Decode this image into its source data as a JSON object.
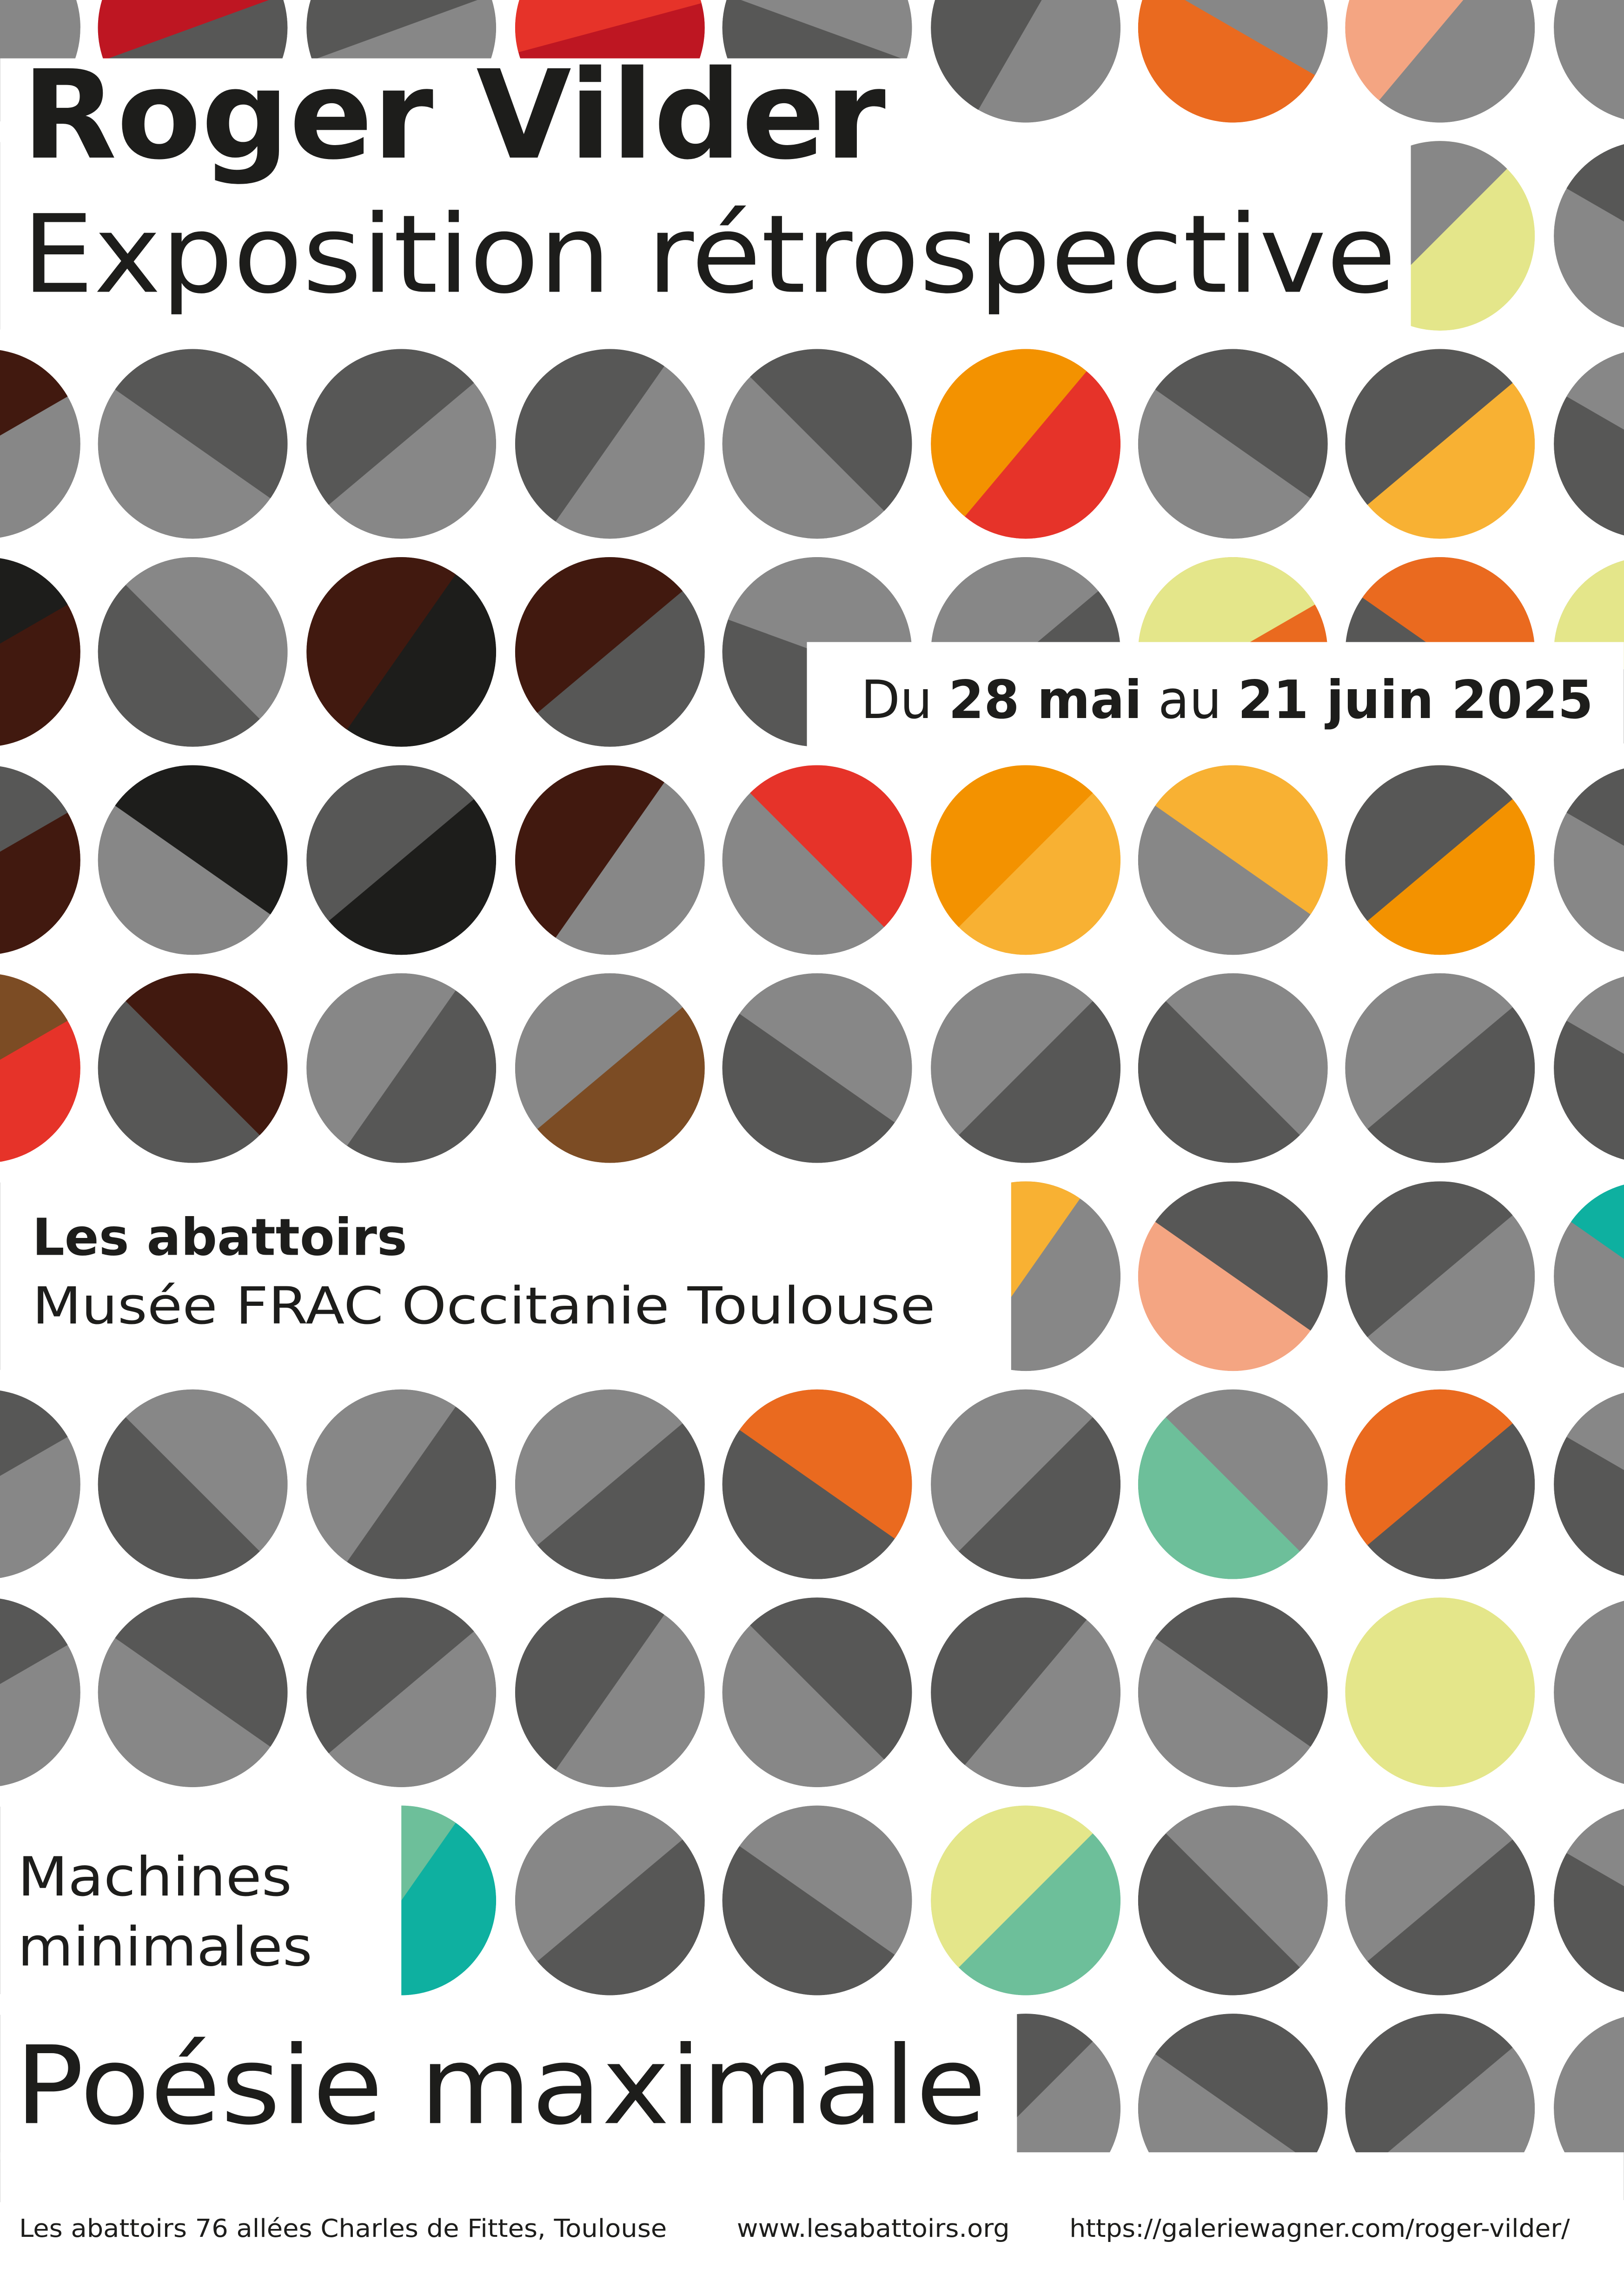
{
  "poster": {
    "artist": "Roger Vilder",
    "subtitle": "Exposition rétrospective",
    "dates": {
      "prefix": "Du ",
      "start": "28 mai",
      "middle": " au ",
      "end": "21 juin 2025"
    },
    "venue": {
      "name": "Les abattoirs",
      "full": "Musée FRAC Occitanie Toulouse"
    },
    "tagline": {
      "line1": "Machines",
      "line2": "minimales",
      "headline": "Poésie maximale"
    },
    "footer": {
      "address": "Les abattoirs 76 allées Charles de Fittes, Toulouse",
      "website": "www.lesabattoirs.org",
      "gallery_url": "https://galeriewagner.com/roger-vilder/"
    }
  },
  "palette": {
    "G": "#878787",
    "D": "#575756",
    "K": "#1d1d1b",
    "B": "#41190f",
    "N": "#7c4c24",
    "R": "#e63329",
    "C": "#be1622",
    "O": "#ea6a1f",
    "A": "#f39200",
    "Y": "#f8b133",
    "S": "#f4a582",
    "P": "#e4e68a",
    "M": "#6dbf9a",
    "T": "#0eb0a0"
  }
}
